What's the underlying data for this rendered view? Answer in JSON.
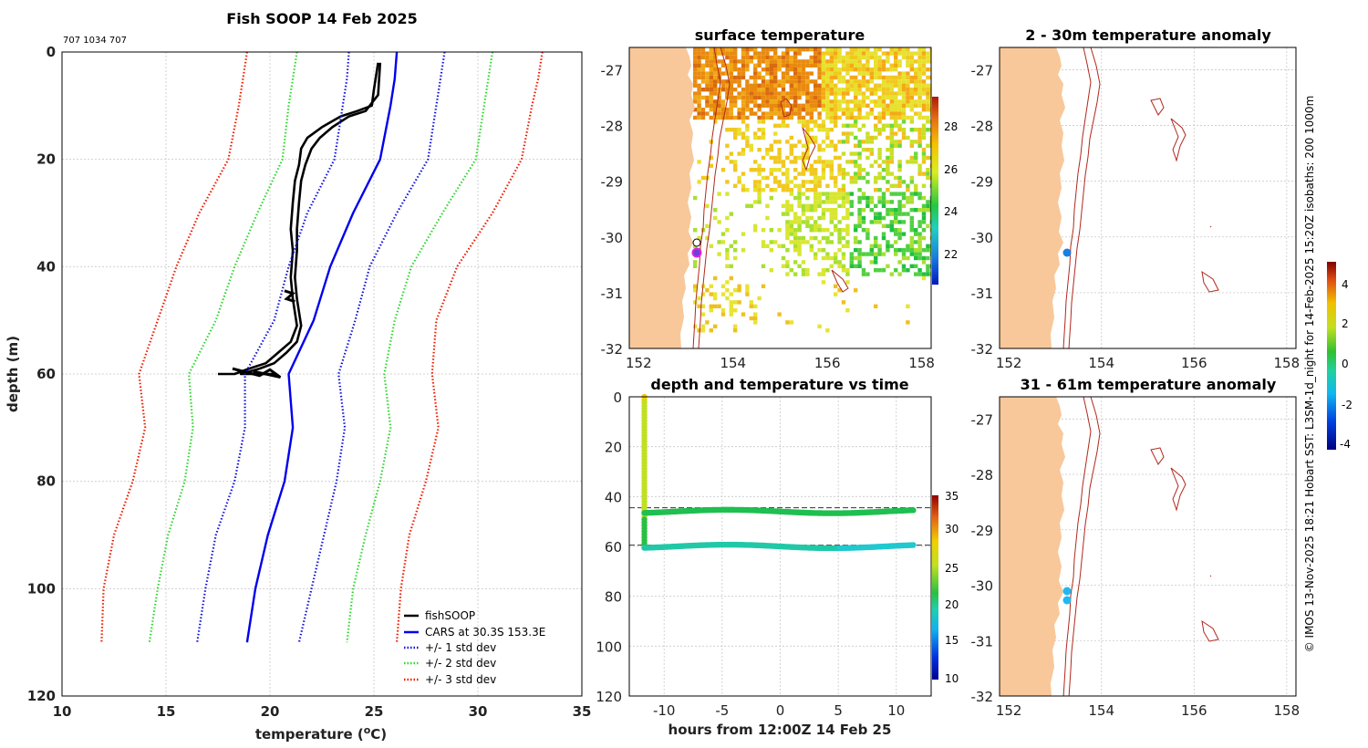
{
  "colors": {
    "fishsoop": "#000000",
    "cars": "#0000ee",
    "std1": "#1010dd",
    "std2": "#2ed52e",
    "std3": "#ee1a00",
    "land": "#f8c89a",
    "isobath": "#b0281c",
    "marker": "#1a7fe0"
  },
  "profile": {
    "title": "Fish SOOP 14 Feb 2025",
    "ids": "707 1034 707",
    "xlabel": "temperature (",
    "xlabel_unit": "o",
    "xlabel_end": "C)",
    "ylabel": "depth (m)",
    "legend": [
      "fishSOOP",
      "CARS at 30.3S 153.3E",
      "+/- 1 std dev",
      "+/- 2 std dev",
      "+/- 3 std dev"
    ]
  },
  "sst_map": {
    "title": "surface temperature",
    "colorbar_ticks": [
      "28",
      "26",
      "24",
      "22"
    ]
  },
  "time_plot": {
    "title": "depth and temperature vs time",
    "xlabel": "hours from 12:00Z 14 Feb 25",
    "colorbar_ticks": [
      "35",
      "30",
      "25",
      "20",
      "15",
      "10"
    ]
  },
  "anom1": {
    "title": "2 - 30m temperature anomaly"
  },
  "anom2": {
    "title": "31 - 61m temperature anomaly"
  },
  "anom_colorbar_ticks": [
    "4",
    "2",
    "0",
    "-2",
    "-4"
  ],
  "side_text": "© IMOS 13-Nov-2025 18:21 Hobart SST: L3SM-1d_night for 14-Feb-2025 15:20Z isobaths: 200  1000m",
  "chart_data": [
    {
      "type": "line",
      "name": "profile",
      "xlim": [
        10,
        35
      ],
      "ylim": [
        0,
        120
      ],
      "y_reversed": true,
      "xticks": [
        10,
        15,
        20,
        25,
        30,
        35
      ],
      "yticks": [
        0,
        20,
        40,
        60,
        80,
        100,
        120
      ],
      "grid": true,
      "legend_position": "bottom-right",
      "series": [
        {
          "name": "fishSOOP",
          "color": "#000000",
          "style": "solid",
          "points": [
            [
              25.2,
              2
            ],
            [
              25.0,
              7
            ],
            [
              24.9,
              10
            ],
            [
              24.2,
              11
            ],
            [
              23.4,
              12
            ],
            [
              22.5,
              14
            ],
            [
              21.8,
              16
            ],
            [
              21.5,
              18
            ],
            [
              21.4,
              21
            ],
            [
              21.2,
              24
            ],
            [
              21.1,
              28
            ],
            [
              21.0,
              33
            ],
            [
              21.1,
              37
            ],
            [
              21.0,
              42
            ],
            [
              21.1,
              46
            ],
            [
              21.3,
              51
            ],
            [
              21.0,
              54
            ],
            [
              20.4,
              56
            ],
            [
              19.8,
              58
            ],
            [
              19.0,
              59
            ],
            [
              18.3,
              60
            ],
            [
              17.5,
              60
            ]
          ]
        },
        {
          "name": "fishSOOP",
          "color": "#000000",
          "style": "solid",
          "points": [
            [
              25.3,
              2
            ],
            [
              25.2,
              8
            ],
            [
              24.6,
              11
            ],
            [
              23.8,
              12
            ],
            [
              23.0,
              14
            ],
            [
              22.4,
              16
            ],
            [
              22.0,
              18
            ],
            [
              21.7,
              21
            ],
            [
              21.5,
              24
            ],
            [
              21.4,
              28
            ],
            [
              21.3,
              33
            ],
            [
              21.3,
              37
            ],
            [
              21.2,
              42
            ],
            [
              21.3,
              46
            ],
            [
              21.5,
              51
            ],
            [
              21.3,
              54
            ],
            [
              20.8,
              56
            ],
            [
              20.2,
              58
            ],
            [
              19.5,
              59
            ],
            [
              18.6,
              60
            ],
            [
              20.2,
              60
            ]
          ]
        },
        {
          "name": "CARS at 30.3S 153.3E",
          "color": "#0000ee",
          "style": "solid",
          "points": [
            [
              26.1,
              0
            ],
            [
              26.0,
              5
            ],
            [
              25.8,
              10
            ],
            [
              25.3,
              20
            ],
            [
              24.0,
              30
            ],
            [
              22.9,
              40
            ],
            [
              22.1,
              50
            ],
            [
              20.9,
              60
            ],
            [
              21.1,
              70
            ],
            [
              20.7,
              80
            ],
            [
              19.9,
              90
            ],
            [
              19.3,
              100
            ],
            [
              18.9,
              110
            ]
          ]
        },
        {
          "name": "+/- 1 std dev",
          "color": "#1010dd",
          "style": "dotted",
          "points": [
            [
              28.4,
              0
            ],
            [
              28.2,
              5
            ],
            [
              28.0,
              10
            ],
            [
              27.6,
              20
            ],
            [
              26.1,
              30
            ],
            [
              24.8,
              40
            ],
            [
              24.1,
              50
            ],
            [
              23.3,
              60
            ],
            [
              23.6,
              70
            ],
            [
              23.2,
              80
            ],
            [
              22.6,
              90
            ],
            [
              22.0,
              100
            ],
            [
              21.4,
              110
            ]
          ]
        },
        {
          "name": "+/- 1 std dev",
          "color": "#1010dd",
          "style": "dotted",
          "points": [
            [
              23.8,
              0
            ],
            [
              23.7,
              5
            ],
            [
              23.5,
              10
            ],
            [
              23.1,
              20
            ],
            [
              21.8,
              30
            ],
            [
              20.9,
              40
            ],
            [
              20.2,
              50
            ],
            [
              18.8,
              60
            ],
            [
              18.8,
              70
            ],
            [
              18.3,
              80
            ],
            [
              17.4,
              90
            ],
            [
              16.9,
              100
            ],
            [
              16.5,
              110
            ]
          ]
        },
        {
          "name": "+/- 2 std dev",
          "color": "#2ed52e",
          "style": "dotted",
          "points": [
            [
              30.7,
              0
            ],
            [
              30.5,
              5
            ],
            [
              30.3,
              10
            ],
            [
              29.9,
              20
            ],
            [
              28.3,
              30
            ],
            [
              26.8,
              40
            ],
            [
              26.0,
              50
            ],
            [
              25.5,
              60
            ],
            [
              25.8,
              70
            ],
            [
              25.3,
              80
            ],
            [
              24.6,
              90
            ],
            [
              24.0,
              100
            ],
            [
              23.7,
              110
            ]
          ]
        },
        {
          "name": "+/- 2 std dev",
          "color": "#2ed52e",
          "style": "dotted",
          "points": [
            [
              21.3,
              0
            ],
            [
              21.1,
              5
            ],
            [
              20.9,
              10
            ],
            [
              20.6,
              20
            ],
            [
              19.4,
              30
            ],
            [
              18.3,
              40
            ],
            [
              17.4,
              50
            ],
            [
              16.1,
              60
            ],
            [
              16.3,
              70
            ],
            [
              15.9,
              80
            ],
            [
              15.1,
              90
            ],
            [
              14.6,
              100
            ],
            [
              14.2,
              110
            ]
          ]
        },
        {
          "name": "+/- 3 std dev",
          "color": "#ee1a00",
          "style": "dotted",
          "points": [
            [
              33.1,
              0
            ],
            [
              32.9,
              5
            ],
            [
              32.6,
              10
            ],
            [
              32.1,
              20
            ],
            [
              30.7,
              30
            ],
            [
              29.0,
              40
            ],
            [
              28.0,
              50
            ],
            [
              27.8,
              60
            ],
            [
              28.1,
              70
            ],
            [
              27.5,
              80
            ],
            [
              26.7,
              90
            ],
            [
              26.3,
              100
            ],
            [
              26.1,
              110
            ]
          ]
        },
        {
          "name": "+/- 3 std dev",
          "color": "#ee1a00",
          "style": "dotted",
          "points": [
            [
              18.9,
              0
            ],
            [
              18.7,
              5
            ],
            [
              18.5,
              10
            ],
            [
              18.0,
              20
            ],
            [
              16.6,
              30
            ],
            [
              15.5,
              40
            ],
            [
              14.6,
              50
            ],
            [
              13.7,
              60
            ],
            [
              14.0,
              70
            ],
            [
              13.4,
              80
            ],
            [
              12.5,
              90
            ],
            [
              12.0,
              100
            ],
            [
              11.9,
              110
            ]
          ]
        }
      ]
    },
    {
      "type": "heatmap",
      "name": "surface temperature",
      "xlim": [
        151.8,
        158.2
      ],
      "ylim": [
        -32,
        -26.6
      ],
      "xticks": [
        152,
        154,
        156,
        158
      ],
      "yticks": [
        -27,
        -28,
        -29,
        -30,
        -31,
        -32
      ],
      "colorbar_range": [
        20.5,
        29.5
      ],
      "grid": false,
      "stations": [
        [
          153.1,
          -30.05
        ],
        [
          153.25,
          -30.25
        ]
      ]
    },
    {
      "type": "scatter",
      "name": "depth and temperature vs time",
      "xlim": [
        -13,
        13
      ],
      "ylim": [
        0,
        120
      ],
      "y_reversed": true,
      "xticks": [
        -10,
        -5,
        0,
        5,
        10
      ],
      "yticks": [
        0,
        20,
        40,
        60,
        80,
        100,
        120
      ],
      "colorbar_range": [
        9,
        35
      ],
      "reference_lines": [
        44.5,
        59.5
      ],
      "series": [
        {
          "name": "descent",
          "x": -11.7,
          "y_range": [
            0,
            60
          ],
          "temp_range": [
            25.2,
            20.0
          ]
        },
        {
          "name": "upper track",
          "x_range": [
            -11.7,
            11.5
          ],
          "depth": 46,
          "temp": 21.5
        },
        {
          "name": "lower track",
          "x_range": [
            -11.7,
            11.5
          ],
          "depth": 60,
          "temp": 18.5
        }
      ]
    },
    {
      "type": "scatter",
      "name": "2 - 30m temperature anomaly",
      "xlim": [
        151.8,
        158.2
      ],
      "ylim": [
        -32,
        -26.6
      ],
      "xticks": [
        152,
        154,
        156,
        158
      ],
      "yticks": [
        -27,
        -28,
        -29,
        -30,
        -31,
        -32
      ],
      "points": [
        [
          153.25,
          -30.25
        ]
      ]
    },
    {
      "type": "scatter",
      "name": "31 - 61m temperature anomaly",
      "xlim": [
        151.8,
        158.2
      ],
      "ylim": [
        -32,
        -26.6
      ],
      "xticks": [
        152,
        154,
        156,
        158
      ],
      "yticks": [
        -27,
        -28,
        -29,
        -30,
        -31,
        -32
      ],
      "points": [
        [
          153.25,
          -30.1
        ],
        [
          153.25,
          -30.25
        ]
      ]
    }
  ]
}
